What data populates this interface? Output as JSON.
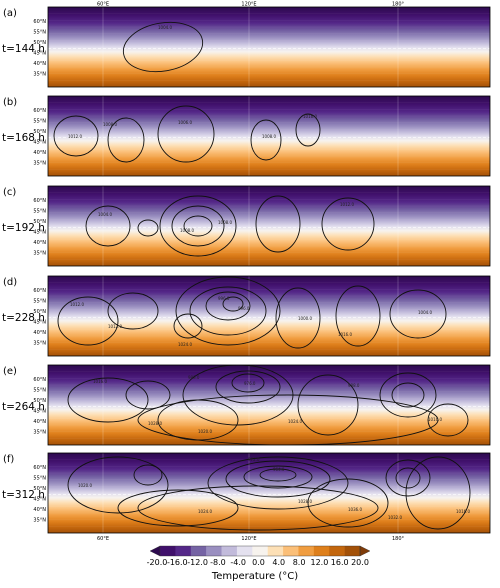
{
  "chart_data": {
    "type": "heatmap",
    "field": "temperature with pressure contours",
    "longitude_ticks": [
      "60°E",
      "120°E",
      "180°"
    ],
    "latitude_ticks": [
      "60°N",
      "55°N",
      "50°N",
      "45°N",
      "40°N",
      "35°N"
    ],
    "colorbar": {
      "title": "Temperature (°C)",
      "ticks": [
        "-20.0",
        "-16.0",
        "-12.0",
        "-8.0",
        "-4.0",
        "0.0",
        "4.0",
        "8.0",
        "12.0",
        "16.0",
        "20.0"
      ],
      "range": [
        -20,
        20
      ],
      "extend": "both",
      "colors": [
        "#2d0a4e",
        "#40106b",
        "#542788",
        "#7563a4",
        "#9a8fc0",
        "#c2bbdb",
        "#e4e1ef",
        "#f7f3ee",
        "#fde0b6",
        "#fbbf78",
        "#f09d40",
        "#de7f1b",
        "#c3660d",
        "#a35108",
        "#7f3b08"
      ]
    },
    "panels": [
      {
        "letter": "(a)",
        "time": "t=144 h",
        "isobars": [
          {
            "label": "1004.0"
          }
        ]
      },
      {
        "letter": "(b)",
        "time": "t=168 h",
        "isobars": [
          {
            "label": "1012.0"
          },
          {
            "label": "1008.0"
          },
          {
            "label": "1006.0"
          },
          {
            "label": "1008.0"
          },
          {
            "label": "1016.0"
          }
        ]
      },
      {
        "letter": "(c)",
        "time": "t=192 h",
        "isobars": [
          {
            "label": "1004.0"
          },
          {
            "label": "1008.0"
          },
          {
            "label": "1008.0"
          },
          {
            "label": "1012.0"
          }
        ]
      },
      {
        "letter": "(d)",
        "time": "t=228 h",
        "isobars": [
          {
            "label": "1012.0"
          },
          {
            "label": "996.0"
          },
          {
            "label": "996.0"
          },
          {
            "label": "1012.0"
          },
          {
            "label": "1000.0"
          },
          {
            "label": "1016.0"
          },
          {
            "label": "1024.0"
          },
          {
            "label": "1004.0"
          }
        ]
      },
      {
        "letter": "(e)",
        "time": "t=264 h",
        "isobars": [
          {
            "label": "1016.0"
          },
          {
            "label": "988.0"
          },
          {
            "label": "976.0"
          },
          {
            "label": "1028.0"
          },
          {
            "label": "988.0"
          },
          {
            "label": "1024.0"
          },
          {
            "label": "1020.0"
          },
          {
            "label": "1016.0"
          }
        ]
      },
      {
        "letter": "(f)",
        "time": "t=312 h",
        "isobars": [
          {
            "label": "1020.0"
          },
          {
            "label": "972.0"
          },
          {
            "label": "964.0"
          },
          {
            "label": "1036.0"
          },
          {
            "label": "1028.0"
          },
          {
            "label": "1024.0"
          },
          {
            "label": "1032.0"
          },
          {
            "label": "1016.0"
          }
        ]
      }
    ]
  }
}
